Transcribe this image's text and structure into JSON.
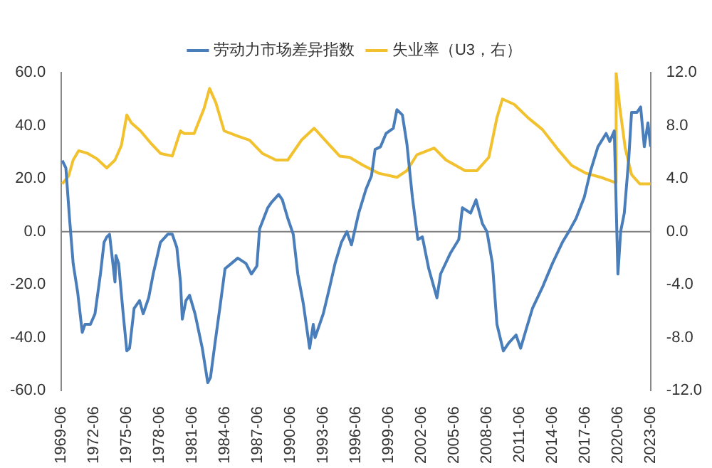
{
  "chart_data": {
    "type": "line",
    "xlim": [
      "1969-06",
      "2023-06"
    ],
    "xticks": [
      "1969-06",
      "1972-06",
      "1975-06",
      "1978-06",
      "1981-06",
      "1984-06",
      "1987-06",
      "1990-06",
      "1993-06",
      "1996-06",
      "1999-06",
      "2002-06",
      "2005-06",
      "2008-06",
      "2011-06",
      "2014-06",
      "2017-06",
      "2020-06",
      "2023-06"
    ],
    "ylim": [
      -60,
      60
    ],
    "yticks": [
      {
        "value": -60,
        "label": "-60.0"
      },
      {
        "value": -40,
        "label": "-40.0"
      },
      {
        "value": -20,
        "label": "-20.0"
      },
      {
        "value": 0,
        "label": "0.0"
      },
      {
        "value": 20,
        "label": "20.0"
      },
      {
        "value": 40,
        "label": "40.0"
      },
      {
        "value": 60,
        "label": "60.0"
      }
    ],
    "y2lim": [
      -12,
      12
    ],
    "y2ticks": [
      {
        "value": -12,
        "label": "-12.0"
      },
      {
        "value": -8,
        "label": "-8.0"
      },
      {
        "value": -4,
        "label": "-4.0"
      },
      {
        "value": 0,
        "label": "0.0"
      },
      {
        "value": 4,
        "label": "4.0"
      },
      {
        "value": 8,
        "label": "8.0"
      },
      {
        "value": 12,
        "label": "12.0"
      }
    ],
    "legend": "top",
    "grid": false,
    "marker": "none",
    "ref_lines": [
      {
        "axis": "y",
        "value": 0,
        "color": "#7f7f7f"
      }
    ],
    "series": [
      {
        "name": "劳动力市场差异指数",
        "color": "#4a7ebb",
        "x": [
          "1969-07",
          "1969-11",
          "1970-03",
          "1970-07",
          "1970-12",
          "1971-05",
          "1971-08",
          "1972-02",
          "1972-07",
          "1973-01",
          "1973-05",
          "1973-08",
          "1973-11",
          "1974-02",
          "1974-05",
          "1974-06",
          "1974-09",
          "1975-02",
          "1975-06",
          "1975-09",
          "1976-02",
          "1976-08",
          "1976-12",
          "1977-06",
          "1977-11",
          "1978-07",
          "1979-03",
          "1979-08",
          "1980-01",
          "1980-05",
          "1980-07",
          "1980-11",
          "1981-03",
          "1981-09",
          "1982-05",
          "1982-11",
          "1983-02",
          "1983-07",
          "1984-01",
          "1984-06",
          "1985-01",
          "1985-08",
          "1986-05",
          "1986-11",
          "1987-05",
          "1987-08",
          "1988-05",
          "1988-09",
          "1989-05",
          "1989-09",
          "1990-03",
          "1990-09",
          "1991-02",
          "1991-08",
          "1992-03",
          "1992-07",
          "1992-09",
          "1993-06",
          "1994-01",
          "1994-07",
          "1995-02",
          "1995-08",
          "1996-01",
          "1996-09",
          "1997-05",
          "1997-11",
          "1998-03",
          "1998-09",
          "1999-03",
          "1999-11",
          "2000-03",
          "2000-09",
          "2001-02",
          "2001-08",
          "2002-02",
          "2002-07",
          "2003-02",
          "2003-11",
          "2004-03",
          "2005-02",
          "2005-11",
          "2006-03",
          "2006-12",
          "2007-06",
          "2008-01",
          "2008-06",
          "2008-12",
          "2009-05",
          "2009-12",
          "2010-06",
          "2011-02",
          "2011-07",
          "2012-01",
          "2012-08",
          "2013-07",
          "2014-06",
          "2015-05",
          "2015-12",
          "2016-08",
          "2017-05",
          "2017-12",
          "2018-08",
          "2019-05",
          "2019-09",
          "2020-02",
          "2020-06",
          "2020-09",
          "2021-01",
          "2021-06",
          "2021-09",
          "2022-03",
          "2022-07",
          "2022-11",
          "2023-03",
          "2023-06"
        ],
        "values": [
          26.8,
          24,
          5,
          -12,
          -23,
          -38,
          -35,
          -35,
          -31,
          -16,
          -4,
          -2,
          -1,
          -10,
          -19,
          -9,
          -12,
          -31,
          -45,
          -44,
          -29,
          -26,
          -31,
          -25,
          -16,
          -4,
          -1,
          -1,
          -6,
          -19,
          -33,
          -26,
          -24,
          -31,
          -44,
          -57,
          -55,
          -42,
          -27,
          -14,
          -12,
          -10,
          -12,
          -16,
          -13,
          1,
          9,
          11,
          14,
          12,
          5,
          -1,
          -16,
          -27,
          -44,
          -35,
          -40,
          -31,
          -21,
          -12,
          -4,
          0,
          -5,
          7,
          16,
          21,
          31,
          32,
          37,
          39,
          46,
          44,
          33,
          13,
          -3,
          -2,
          -14,
          -25,
          -16,
          -8,
          -3,
          9,
          7,
          12,
          3,
          0,
          -12,
          -35,
          -45,
          -42,
          -39,
          -44,
          -37,
          -29,
          -21,
          -12,
          -4,
          0,
          5,
          13,
          23,
          32,
          37,
          34,
          38,
          -16,
          0,
          7,
          28,
          45,
          45,
          47,
          32,
          41,
          32
        ]
      },
      {
        "name": "失业率（U3，右）",
        "color": "#f2c12e",
        "axis": "y2",
        "x": [
          "1969-07",
          "1970-02",
          "1970-07",
          "1971-01",
          "1971-11",
          "1972-09",
          "1973-08",
          "1974-05",
          "1974-12",
          "1975-06",
          "1975-11",
          "1976-09",
          "1977-08",
          "1978-07",
          "1979-08",
          "1980-05",
          "1980-09",
          "1981-08",
          "1982-07",
          "1983-01",
          "1983-08",
          "1984-05",
          "1985-08",
          "1986-09",
          "1987-11",
          "1989-02",
          "1990-03",
          "1991-06",
          "1992-08",
          "1993-08",
          "1994-12",
          "1995-11",
          "1997-02",
          "1998-07",
          "2000-03",
          "2001-02",
          "2002-01",
          "2003-08",
          "2004-09",
          "2006-06",
          "2007-07",
          "2008-08",
          "2009-05",
          "2009-11",
          "2010-12",
          "2012-03",
          "2013-07",
          "2014-12",
          "2016-03",
          "2017-07",
          "2018-11",
          "2020-03",
          "2020-04",
          "2020-08",
          "2021-02",
          "2021-09",
          "2022-06",
          "2023-06"
        ],
        "values": [
          3.6,
          4.2,
          5.4,
          6.1,
          5.9,
          5.5,
          4.8,
          5.4,
          6.5,
          8.8,
          8.2,
          7.6,
          6.7,
          5.9,
          5.7,
          7.6,
          7.4,
          7.4,
          9.3,
          10.8,
          9.7,
          7.6,
          7.2,
          6.9,
          5.9,
          5.4,
          5.4,
          6.9,
          7.8,
          6.9,
          5.7,
          5.6,
          5.0,
          4.4,
          4.1,
          4.6,
          5.8,
          6.3,
          5.4,
          4.6,
          4.6,
          5.6,
          8.6,
          10.0,
          9.6,
          8.6,
          7.7,
          6.2,
          5.0,
          4.4,
          4.1,
          3.7,
          12,
          9.4,
          6.3,
          4.3,
          3.6,
          3.6
        ]
      }
    ]
  }
}
